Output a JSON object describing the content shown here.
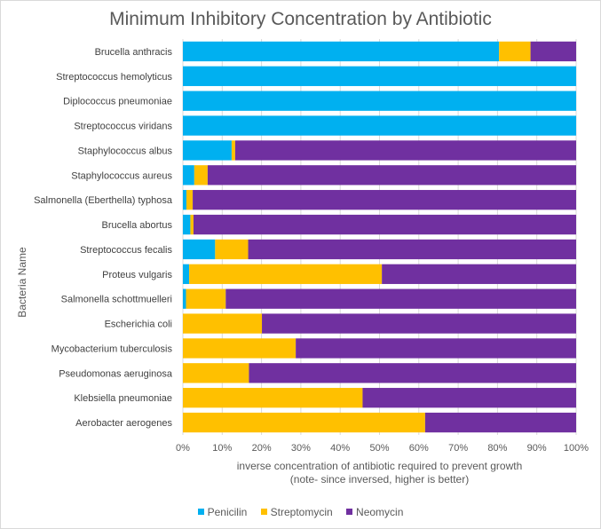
{
  "chart_data": {
    "type": "bar",
    "orientation": "horizontal",
    "stacked": "percent",
    "title": "Minimum Inhibitory Concentration by Antibiotic",
    "ylabel": "Bacteria Name",
    "xlabel_lines": [
      "inverse concentration of antibiotic required to prevent growth",
      "(note- since inversed, higher is better)"
    ],
    "xlim": [
      0,
      100
    ],
    "x_ticks": [
      "0%",
      "10%",
      "20%",
      "30%",
      "40%",
      "50%",
      "60%",
      "70%",
      "80%",
      "90%",
      "100%"
    ],
    "grid": true,
    "legend_position": "bottom",
    "categories": [
      "Brucella anthracis",
      "Streptococcus hemolyticus",
      "Diplococcus pneumoniae",
      "Streptococcus viridans",
      "Staphylococcus albus",
      "Staphylococcus aureus",
      "Salmonella (Eberthella) typhosa",
      "Brucella abortus",
      "Streptococcus fecalis",
      "Proteus vulgaris",
      "Salmonella schottmuelleri",
      "Escherichia coli",
      "Mycobacterium tuberculosis",
      "Pseudomonas aeruginosa",
      "Klebsiella pneumoniae",
      "Aerobacter aerogenes"
    ],
    "series": [
      {
        "name": "Penicilin",
        "color": "#00b0f0",
        "values": [
          80.4,
          100,
          100,
          100,
          12.4,
          2.9,
          0.9,
          1.9,
          8.2,
          1.6,
          0.8,
          0,
          0,
          0,
          0,
          0
        ]
      },
      {
        "name": "Streptomycin",
        "color": "#ffc000",
        "values": [
          8.0,
          0,
          0,
          0,
          0.9,
          3.4,
          1.6,
          0.8,
          8.4,
          49.0,
          10.1,
          20.1,
          28.7,
          16.8,
          45.7,
          61.6
        ]
      },
      {
        "name": "Neomycin",
        "color": "#7030a0",
        "values": [
          11.6,
          0,
          0,
          0,
          86.7,
          93.7,
          97.5,
          97.3,
          83.4,
          49.4,
          89.1,
          79.9,
          71.3,
          83.2,
          54.3,
          38.4
        ]
      }
    ]
  }
}
